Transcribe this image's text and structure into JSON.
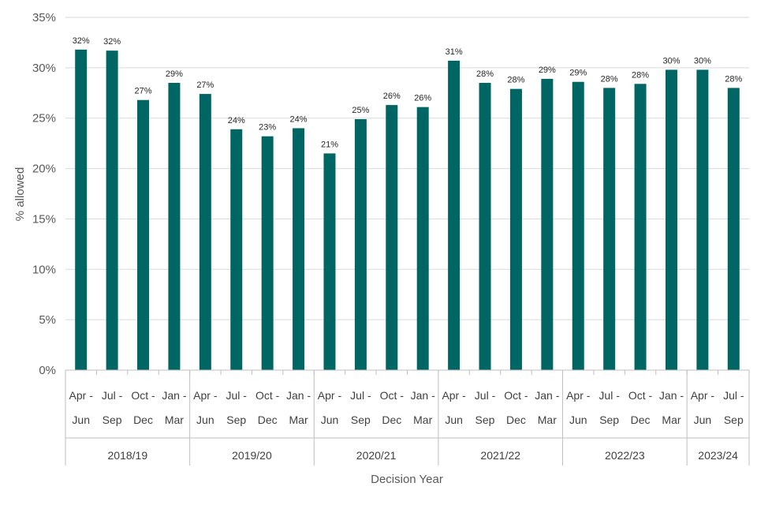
{
  "chart_data": {
    "type": "bar",
    "title": "",
    "xlabel": "Decision Year",
    "ylabel": "% allowed",
    "ylim": [
      0,
      35
    ],
    "yticks": [
      0,
      5,
      10,
      15,
      20,
      25,
      30,
      35
    ],
    "ytick_suffix": "%",
    "grid": true,
    "bar_color": "#006663",
    "categories": [
      {
        "line1": "Apr -",
        "line2": "Jun"
      },
      {
        "line1": "Jul -",
        "line2": "Sep"
      },
      {
        "line1": "Oct -",
        "line2": "Dec"
      },
      {
        "line1": "Jan -",
        "line2": "Mar"
      },
      {
        "line1": "Apr -",
        "line2": "Jun"
      },
      {
        "line1": "Jul -",
        "line2": "Sep"
      },
      {
        "line1": "Oct -",
        "line2": "Dec"
      },
      {
        "line1": "Jan -",
        "line2": "Mar"
      },
      {
        "line1": "Apr -",
        "line2": "Jun"
      },
      {
        "line1": "Jul -",
        "line2": "Sep"
      },
      {
        "line1": "Oct -",
        "line2": "Dec"
      },
      {
        "line1": "Jan -",
        "line2": "Mar"
      },
      {
        "line1": "Apr -",
        "line2": "Jun"
      },
      {
        "line1": "Jul -",
        "line2": "Sep"
      },
      {
        "line1": "Oct -",
        "line2": "Dec"
      },
      {
        "line1": "Jan -",
        "line2": "Mar"
      },
      {
        "line1": "Apr -",
        "line2": "Jun"
      },
      {
        "line1": "Jul -",
        "line2": "Sep"
      },
      {
        "line1": "Oct -",
        "line2": "Dec"
      },
      {
        "line1": "Jan -",
        "line2": "Mar"
      },
      {
        "line1": "Apr -",
        "line2": "Jun"
      },
      {
        "line1": "Jul -",
        "line2": "Sep"
      }
    ],
    "groups": [
      {
        "label": "2018/19",
        "count": 4
      },
      {
        "label": "2019/20",
        "count": 4
      },
      {
        "label": "2020/21",
        "count": 4
      },
      {
        "label": "2021/22",
        "count": 4
      },
      {
        "label": "2022/23",
        "count": 4
      },
      {
        "label": "2023/24",
        "count": 2
      }
    ],
    "values": [
      31.8,
      31.7,
      26.8,
      28.5,
      27.4,
      23.9,
      23.2,
      24.0,
      21.5,
      24.9,
      26.3,
      26.1,
      30.7,
      28.5,
      27.9,
      28.9,
      28.6,
      28.0,
      28.4,
      29.8,
      29.8,
      28.0
    ],
    "data_labels": [
      "32%",
      "32%",
      "27%",
      "29%",
      "27%",
      "24%",
      "23%",
      "24%",
      "21%",
      "25%",
      "26%",
      "26%",
      "31%",
      "28%",
      "28%",
      "29%",
      "29%",
      "28%",
      "28%",
      "30%",
      "30%",
      "28%"
    ]
  }
}
